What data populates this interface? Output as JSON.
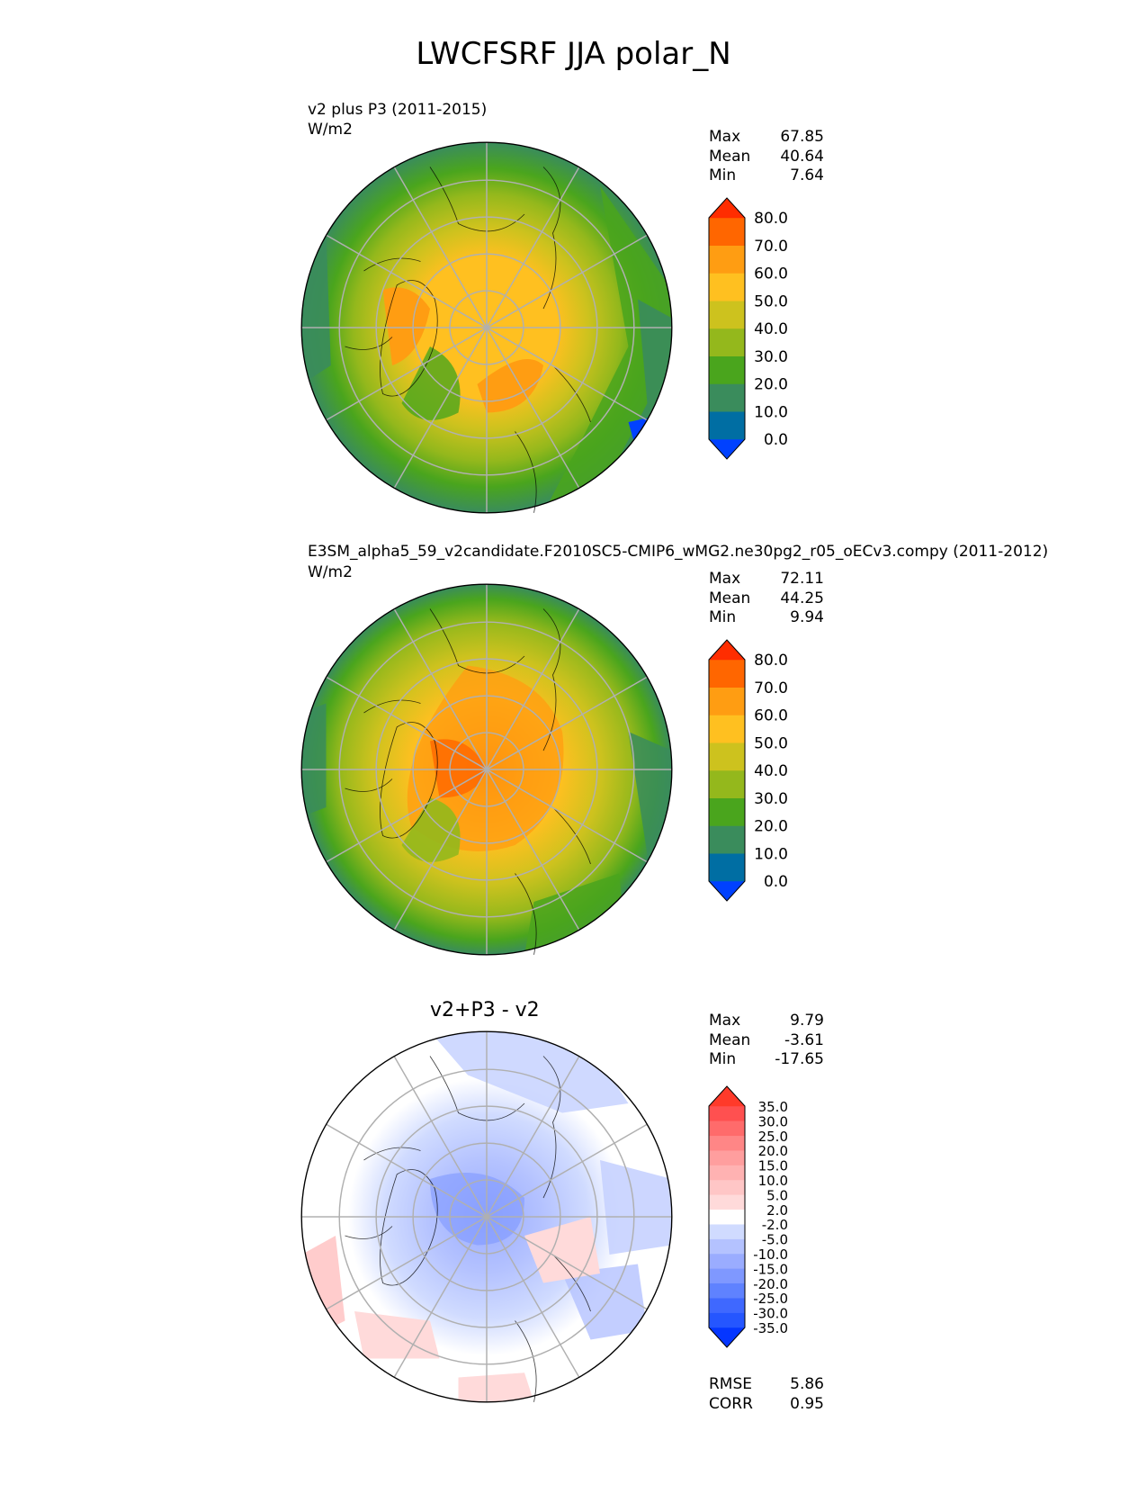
{
  "title": "LWCFSRF JJA polar_N",
  "panels": [
    {
      "name": "test",
      "subtitle": "v2 plus P3 (2011-2015)",
      "units": "W/m2",
      "stats": [
        {
          "label": "Max",
          "value": "67.85"
        },
        {
          "label": "Mean",
          "value": "40.64"
        },
        {
          "label": "Min",
          "value": "7.64"
        }
      ],
      "colorbar": {
        "colors": [
          "#0041ff",
          "#006ea3",
          "#3a8c5c",
          "#4aa51d",
          "#94b81c",
          "#cdc21e",
          "#ffc020",
          "#ff9d12",
          "#ff6600",
          "#ff2d00"
        ],
        "tick_labels": [
          "0.0",
          "10.0",
          "20.0",
          "30.0",
          "40.0",
          "50.0",
          "60.0",
          "70.0",
          "80.0"
        ]
      }
    },
    {
      "name": "reference",
      "subtitle": "E3SM_alpha5_59_v2candidate.F2010SC5-CMIP6_wMG2.ne30pg2_r05_oECv3.compy (2011-2012)",
      "units": "W/m2",
      "stats": [
        {
          "label": "Max",
          "value": "72.11"
        },
        {
          "label": "Mean",
          "value": "44.25"
        },
        {
          "label": "Min",
          "value": "9.94"
        }
      ],
      "colorbar": {
        "colors": [
          "#0041ff",
          "#006ea3",
          "#3a8c5c",
          "#4aa51d",
          "#94b81c",
          "#cdc21e",
          "#ffc020",
          "#ff9d12",
          "#ff6600",
          "#ff2d00"
        ],
        "tick_labels": [
          "0.0",
          "10.0",
          "20.0",
          "30.0",
          "40.0",
          "50.0",
          "60.0",
          "70.0",
          "80.0"
        ]
      }
    },
    {
      "name": "difference",
      "subtitle": "v2+P3 - v2",
      "stats": [
        {
          "label": "Max",
          "value": "9.79"
        },
        {
          "label": "Mean",
          "value": "-3.61"
        },
        {
          "label": "Min",
          "value": "-17.65"
        }
      ],
      "extra_stats": [
        {
          "label": "RMSE",
          "value": "5.86"
        },
        {
          "label": "CORR",
          "value": "0.95"
        }
      ],
      "colorbar": {
        "colors": [
          "#0536ff",
          "#2556ff",
          "#3f68ff",
          "#5f82ff",
          "#7f98ff",
          "#9aacff",
          "#b4c2ff",
          "#d0dbff",
          "#ffffff",
          "#ffdada",
          "#ffc6c6",
          "#ffb2b2",
          "#ff9e9e",
          "#ff8686",
          "#ff6b6b",
          "#ff5050",
          "#ff3a2a"
        ],
        "tick_labels": [
          "-35.0",
          "-30.0",
          "-25.0",
          "-20.0",
          "-15.0",
          "-10.0",
          "-5.0",
          "-2.0",
          "2.0",
          "5.0",
          "10.0",
          "15.0",
          "20.0",
          "25.0",
          "30.0",
          "35.0"
        ]
      }
    }
  ],
  "chart_data": [
    {
      "type": "heatmap",
      "projection": "north polar stereographic",
      "title": "v2 plus P3 (2011-2015)",
      "units": "W/m2",
      "levels": [
        0,
        10,
        20,
        30,
        40,
        50,
        60,
        70,
        80
      ],
      "max": 67.85,
      "mean": 40.64,
      "min": 7.64
    },
    {
      "type": "heatmap",
      "projection": "north polar stereographic",
      "title": "E3SM_alpha5_59_v2candidate.F2010SC5-CMIP6_wMG2.ne30pg2_r05_oECv3.compy (2011-2012)",
      "units": "W/m2",
      "levels": [
        0,
        10,
        20,
        30,
        40,
        50,
        60,
        70,
        80
      ],
      "max": 72.11,
      "mean": 44.25,
      "min": 9.94
    },
    {
      "type": "heatmap",
      "projection": "north polar stereographic",
      "title": "v2+P3 - v2",
      "levels": [
        -35,
        -30,
        -25,
        -20,
        -15,
        -10,
        -5,
        -2,
        2,
        5,
        10,
        15,
        20,
        25,
        30,
        35
      ],
      "max": 9.79,
      "mean": -3.61,
      "min": -17.65,
      "rmse": 5.86,
      "corr": 0.95
    }
  ]
}
